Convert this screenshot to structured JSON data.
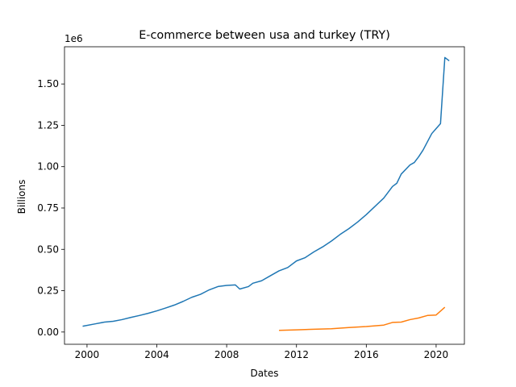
{
  "chart_data": {
    "type": "line",
    "title": "E-commerce between usa and turkey (TRY)",
    "xlabel": "Dates",
    "ylabel": "Billions",
    "y_offset_text": "1e6",
    "xlim": [
      1998.71,
      2021.62
    ],
    "ylim": [
      -0.074,
      1.725
    ],
    "xticks": [
      2000,
      2004,
      2008,
      2012,
      2016,
      2020
    ],
    "yticks": [
      {
        "value": 0,
        "label": "0.00"
      },
      {
        "value": 0.25,
        "label": "0.25"
      },
      {
        "value": 0.5,
        "label": "0.50"
      },
      {
        "value": 0.75,
        "label": "0.75"
      },
      {
        "value": 1,
        "label": "1.00"
      },
      {
        "value": 1.25,
        "label": "1.25"
      },
      {
        "value": 1.5,
        "label": "1.50"
      }
    ],
    "grid": false,
    "series": [
      {
        "color": "#1f77b4",
        "x": [
          1999.75,
          2000.5,
          2001,
          2001.5,
          2002,
          2002.5,
          2003,
          2003.5,
          2004,
          2004.5,
          2005,
          2005.5,
          2006,
          2006.5,
          2007,
          2007.5,
          2008,
          2008.5,
          2008.75,
          2009.25,
          2009.5,
          2010,
          2010.5,
          2011,
          2011.5,
          2012,
          2012.5,
          2013,
          2013.5,
          2014,
          2014.5,
          2015,
          2015.5,
          2016,
          2016.5,
          2017,
          2017.5,
          2017.75,
          2018,
          2018.5,
          2018.75,
          2019,
          2019.25,
          2019.75,
          2020,
          2020.25,
          2020.5,
          2020.75
        ],
        "values": [
          0.035,
          0.05,
          0.06,
          0.065,
          0.075,
          0.088,
          0.1,
          0.113,
          0.128,
          0.145,
          0.163,
          0.185,
          0.21,
          0.228,
          0.255,
          0.275,
          0.282,
          0.285,
          0.26,
          0.275,
          0.295,
          0.31,
          0.34,
          0.37,
          0.39,
          0.43,
          0.45,
          0.485,
          0.515,
          0.55,
          0.59,
          0.625,
          0.665,
          0.71,
          0.76,
          0.81,
          0.88,
          0.9,
          0.955,
          1.01,
          1.025,
          1.06,
          1.1,
          1.2,
          1.23,
          1.26,
          1.66,
          1.64
        ]
      },
      {
        "color": "#ff7f0e",
        "x": [
          2011,
          2012,
          2013,
          2014,
          2015,
          2016,
          2017,
          2017.5,
          2018,
          2018.5,
          2019,
          2019.5,
          2020,
          2020.5
        ],
        "values": [
          0.01,
          0.013,
          0.017,
          0.02,
          0.027,
          0.033,
          0.042,
          0.058,
          0.06,
          0.075,
          0.085,
          0.1,
          0.103,
          0.15
        ]
      }
    ]
  }
}
